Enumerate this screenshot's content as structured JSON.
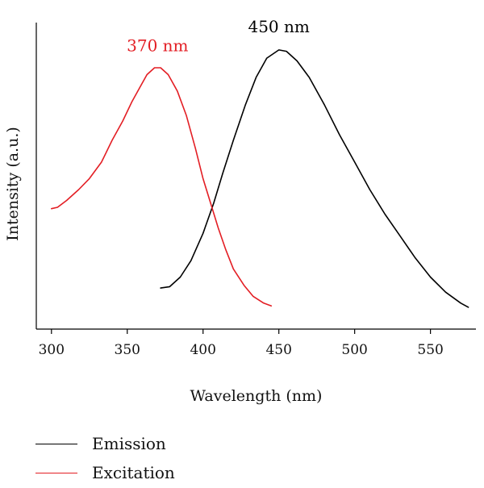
{
  "chart_data": {
    "type": "line",
    "xlabel": "Wavelength (nm)",
    "ylabel": "Intensity (a.u.)",
    "xlim": [
      290,
      580
    ],
    "ylim": [
      0,
      1.12
    ],
    "x_ticks": [
      300,
      350,
      400,
      450,
      500,
      550
    ],
    "y_ticks_shown": false,
    "grid": false,
    "legend_position": "below-left",
    "series": [
      {
        "name": "Emission",
        "color": "#000000",
        "points": [
          [
            372,
            0.15
          ],
          [
            378,
            0.155
          ],
          [
            385,
            0.19
          ],
          [
            392,
            0.25
          ],
          [
            400,
            0.35
          ],
          [
            407,
            0.46
          ],
          [
            413,
            0.57
          ],
          [
            420,
            0.69
          ],
          [
            428,
            0.82
          ],
          [
            435,
            0.92
          ],
          [
            442,
            0.99
          ],
          [
            450,
            1.02
          ],
          [
            455,
            1.015
          ],
          [
            462,
            0.98
          ],
          [
            470,
            0.92
          ],
          [
            480,
            0.82
          ],
          [
            490,
            0.71
          ],
          [
            500,
            0.61
          ],
          [
            510,
            0.51
          ],
          [
            520,
            0.42
          ],
          [
            530,
            0.34
          ],
          [
            540,
            0.26
          ],
          [
            550,
            0.19
          ],
          [
            560,
            0.135
          ],
          [
            570,
            0.095
          ],
          [
            575,
            0.08
          ]
        ]
      },
      {
        "name": "Excitation",
        "color": "#e31e24",
        "points": [
          [
            300,
            0.44
          ],
          [
            304,
            0.445
          ],
          [
            310,
            0.47
          ],
          [
            318,
            0.51
          ],
          [
            325,
            0.55
          ],
          [
            333,
            0.61
          ],
          [
            340,
            0.69
          ],
          [
            347,
            0.76
          ],
          [
            353,
            0.83
          ],
          [
            358,
            0.88
          ],
          [
            363,
            0.93
          ],
          [
            368,
            0.955
          ],
          [
            372,
            0.955
          ],
          [
            377,
            0.93
          ],
          [
            383,
            0.87
          ],
          [
            389,
            0.78
          ],
          [
            395,
            0.66
          ],
          [
            400,
            0.55
          ],
          [
            405,
            0.46
          ],
          [
            410,
            0.37
          ],
          [
            415,
            0.29
          ],
          [
            420,
            0.22
          ],
          [
            427,
            0.16
          ],
          [
            433,
            0.12
          ],
          [
            440,
            0.095
          ],
          [
            445,
            0.085
          ]
        ]
      }
    ],
    "annotations": [
      {
        "text": "450 nm",
        "x": 450,
        "y": 1.085,
        "color": "#000000"
      },
      {
        "text": "370 nm",
        "x": 370,
        "y": 1.015,
        "color": "#e31e24"
      }
    ]
  },
  "legend": [
    {
      "label": "Emission",
      "color": "#000000"
    },
    {
      "label": "Excitation",
      "color": "#e31e24"
    }
  ]
}
